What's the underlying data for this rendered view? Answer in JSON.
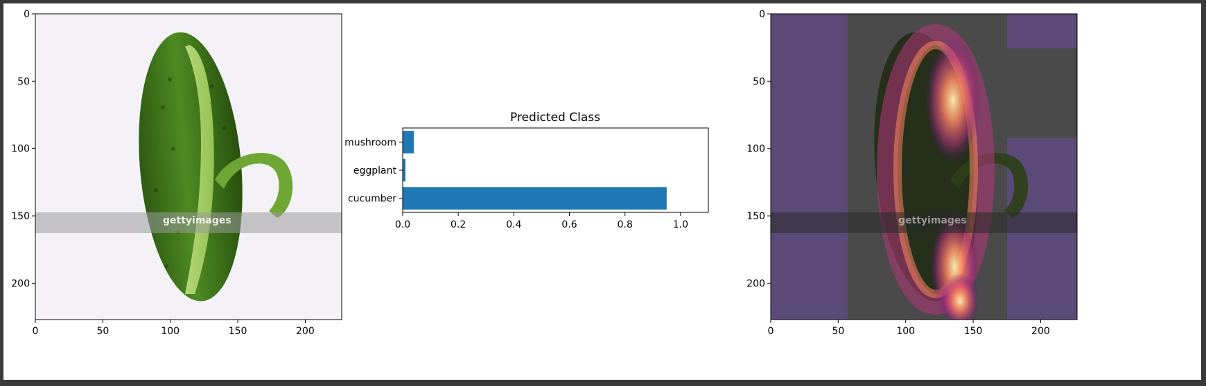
{
  "chart_data": [
    {
      "type": "image",
      "panel": "left",
      "xlim": [
        0,
        227
      ],
      "ylim": [
        227,
        0
      ],
      "xticks": [
        0,
        50,
        100,
        150,
        200
      ],
      "yticks": [
        0,
        50,
        100,
        150,
        200
      ],
      "image_content": "cucumber with partially peeled strip on white background",
      "watermark": "gettyimages"
    },
    {
      "type": "bar",
      "orientation": "horizontal",
      "panel": "middle",
      "title": "Predicted Class",
      "categories": [
        "mushroom",
        "eggplant",
        "cucumber"
      ],
      "values": [
        0.04,
        0.01,
        0.95
      ],
      "xlim": [
        0,
        1.1
      ],
      "xticks": [
        0.0,
        0.2,
        0.4,
        0.6,
        0.8,
        1.0
      ],
      "xtick_labels": [
        "0.0",
        "0.2",
        "0.4",
        "0.6",
        "0.8",
        "1.0"
      ],
      "bar_color": "#1f77b4"
    },
    {
      "type": "heatmap",
      "panel": "right",
      "xlim": [
        0,
        227
      ],
      "ylim": [
        227,
        0
      ],
      "xticks": [
        0,
        50,
        100,
        150,
        200
      ],
      "yticks": [
        0,
        50,
        100,
        150,
        200
      ],
      "image_content": "Grad-CAM heatmap overlay on the cucumber image",
      "colormap": "magma",
      "watermark": "gettyimages"
    }
  ]
}
